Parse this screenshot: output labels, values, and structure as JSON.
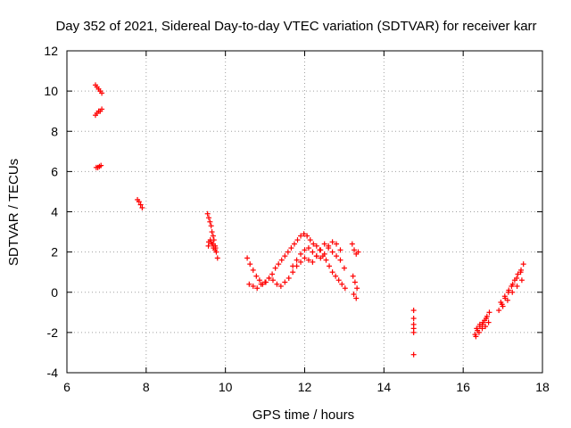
{
  "chart_data": {
    "type": "scatter",
    "title": "Day 352 of 2021, Sidereal Day-to-day VTEC variation (SDTVAR) for receiver karr",
    "xlabel": "GPS time / hours",
    "ylabel": "SDTVAR / TECUs",
    "xlim": [
      6,
      18
    ],
    "ylim": [
      -4,
      12
    ],
    "xticks": [
      6,
      8,
      10,
      12,
      14,
      16,
      18
    ],
    "yticks": [
      -4,
      -2,
      0,
      2,
      4,
      6,
      8,
      10,
      12
    ],
    "grid": true,
    "marker": "+",
    "series_color": "#ff0000",
    "series": [
      {
        "name": "SDTVAR",
        "x": [
          6.72,
          6.76,
          6.8,
          6.84,
          6.88,
          6.72,
          6.76,
          6.8,
          6.84,
          6.88,
          6.74,
          6.78,
          6.82,
          6.86,
          7.78,
          7.82,
          7.86,
          7.9,
          9.55,
          9.58,
          9.61,
          9.64,
          9.66,
          9.69,
          9.71,
          9.74,
          9.77,
          9.8,
          9.58,
          9.62,
          9.66,
          9.7,
          9.74,
          9.57,
          9.63,
          9.69,
          9.75,
          10.55,
          10.62,
          10.7,
          10.78,
          10.86,
          10.94,
          11.02,
          11.1,
          11.18,
          11.26,
          11.34,
          11.42,
          11.5,
          11.58,
          11.66,
          11.74,
          11.82,
          11.9,
          11.98,
          12.06,
          12.14,
          12.22,
          12.3,
          12.38,
          12.46,
          12.54,
          12.62,
          12.7,
          12.78,
          12.86,
          12.94,
          13.02,
          10.6,
          10.7,
          10.8,
          10.9,
          11.0,
          11.1,
          11.2,
          11.3,
          11.4,
          11.5,
          11.6,
          11.7,
          11.8,
          11.9,
          12.0,
          12.1,
          12.2,
          12.3,
          12.4,
          12.5,
          12.6,
          12.7,
          12.8,
          12.9,
          13.0,
          11.7,
          11.8,
          11.9,
          12.0,
          12.1,
          12.2,
          12.3,
          12.4,
          12.5,
          12.6,
          12.7,
          12.8,
          12.9,
          13.2,
          13.25,
          13.3,
          13.35,
          13.22,
          13.27,
          13.32,
          13.24,
          13.3,
          14.75,
          14.75,
          14.75,
          14.75,
          14.75,
          14.75,
          16.3,
          16.36,
          16.42,
          16.48,
          16.54,
          16.6,
          16.66,
          16.34,
          16.42,
          16.5,
          16.58,
          16.32,
          16.4,
          16.48,
          16.56,
          16.64,
          16.9,
          16.98,
          17.06,
          17.14,
          17.22,
          17.3,
          17.38,
          17.46,
          17.52,
          16.95,
          17.05,
          17.15,
          17.25,
          17.35,
          17.45,
          17.0,
          17.12,
          17.24,
          17.36,
          17.48
        ],
        "y": [
          10.3,
          10.2,
          10.1,
          10.0,
          9.9,
          8.8,
          8.9,
          9.0,
          9.0,
          9.1,
          6.2,
          6.2,
          6.25,
          6.3,
          4.6,
          4.5,
          4.35,
          4.2,
          3.9,
          3.7,
          3.5,
          3.3,
          3.0,
          2.8,
          2.6,
          2.3,
          2.0,
          1.7,
          2.5,
          2.6,
          2.4,
          2.2,
          2.1,
          2.3,
          2.5,
          2.4,
          2.2,
          1.7,
          1.4,
          1.1,
          0.8,
          0.6,
          0.4,
          0.5,
          0.7,
          0.9,
          1.2,
          1.4,
          1.6,
          1.8,
          2.0,
          2.2,
          2.4,
          2.6,
          2.8,
          2.9,
          2.8,
          2.6,
          2.4,
          2.3,
          2.1,
          1.8,
          1.6,
          1.3,
          1.0,
          0.8,
          0.6,
          0.4,
          0.2,
          0.4,
          0.3,
          0.2,
          0.4,
          0.5,
          0.7,
          0.6,
          0.4,
          0.3,
          0.5,
          0.7,
          1.0,
          1.3,
          1.5,
          1.7,
          1.6,
          1.5,
          1.8,
          2.1,
          2.4,
          2.3,
          2.0,
          1.8,
          1.6,
          1.2,
          1.3,
          1.6,
          1.9,
          2.1,
          2.2,
          2.0,
          1.8,
          1.7,
          1.9,
          2.2,
          2.5,
          2.4,
          2.1,
          2.4,
          2.1,
          1.9,
          2.0,
          0.8,
          0.5,
          0.2,
          -0.1,
          -0.3,
          -0.9,
          -1.3,
          -1.6,
          -1.8,
          -2.0,
          -3.1,
          -2.1,
          -1.9,
          -1.7,
          -1.6,
          -1.4,
          -1.2,
          -1.0,
          -1.8,
          -1.6,
          -1.5,
          -1.3,
          -2.2,
          -2.0,
          -1.8,
          -1.7,
          -1.5,
          -0.9,
          -0.6,
          -0.3,
          0.0,
          0.3,
          0.6,
          0.9,
          1.1,
          1.4,
          -0.5,
          -0.2,
          0.1,
          0.4,
          0.7,
          1.0,
          -0.7,
          -0.4,
          0.0,
          0.3,
          0.6
        ]
      }
    ]
  }
}
